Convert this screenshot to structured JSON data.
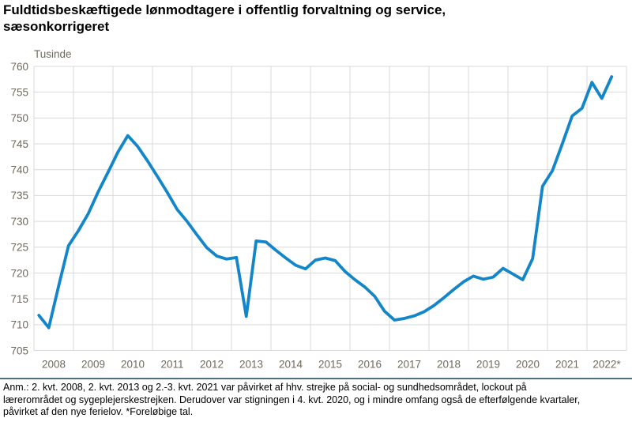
{
  "header": {
    "title_lines": [
      "Fuldtidsbeskæftigede lønmodtagere i offentlig forvaltning og service,",
      "sæsonkorrigeret"
    ]
  },
  "footnote_lines": [
    "Anm.: 2. kvt. 2008, 2. kvt. 2013 og 2.-3. kvt. 2021 var påvirket af hhv. strejke på social- og sundhedsområdet, lockout på",
    "lærerområdet og sygeplejerskestrejken. Derudover var stigningen i 4. kvt. 2020, og i mindre omfang også de efterfølgende kvartaler,",
    "påvirket af den nye ferielov. *Foreløbige tal."
  ],
  "chart_data": {
    "type": "line",
    "title": "Fuldtidsbeskæftigede lønmodtagere i offentlig forvaltning og service, sæsonkorrigeret",
    "unit_label": "Tusinde",
    "ylim": [
      705,
      760
    ],
    "y_ticks": [
      760,
      755,
      750,
      745,
      740,
      735,
      730,
      725,
      720,
      715,
      710,
      705
    ],
    "x_tick_labels": [
      "2008",
      "2009",
      "2010",
      "2011",
      "2012",
      "2013",
      "2014",
      "2015",
      "2016",
      "2017",
      "2018",
      "2019",
      "2020",
      "2021",
      "2022*"
    ],
    "grid": true,
    "legend": "none",
    "line_color": "#1286C8",
    "grid_color": "#D9D9D9",
    "axis_text_color": "#6F6A5E",
    "series": [
      {
        "name": "Fuldtidsbeskæftigede lønmodtagere i offentlig forvaltning og service, sæsonkorrigeret (tusinde)",
        "start": "2008K1",
        "end": "2022K3",
        "frequency": "quarterly",
        "values": [
          711.8,
          709.4,
          717.5,
          725.3,
          728.2,
          731.5,
          735.7,
          739.5,
          743.4,
          746.6,
          744.5,
          741.7,
          738.7,
          735.6,
          732.3,
          730.0,
          727.4,
          724.9,
          723.3,
          722.7,
          723.0,
          711.6,
          726.2,
          726.0,
          724.4,
          722.9,
          721.5,
          720.8,
          722.5,
          722.9,
          722.4,
          720.3,
          718.7,
          717.3,
          715.5,
          712.6,
          710.9,
          711.2,
          711.7,
          712.5,
          713.7,
          715.2,
          716.8,
          718.3,
          719.4,
          718.8,
          719.2,
          720.9,
          719.8,
          718.7,
          722.8,
          736.8,
          739.8,
          745.0,
          750.4,
          751.9,
          756.9,
          753.8,
          758.0
        ]
      }
    ]
  }
}
